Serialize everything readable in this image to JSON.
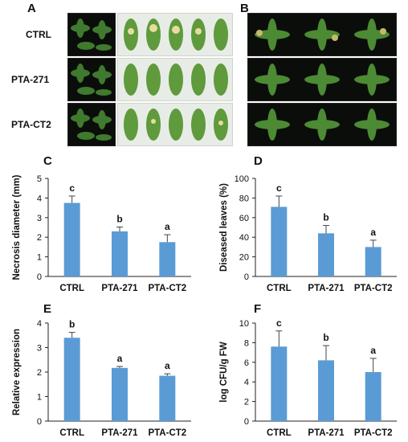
{
  "panels": {
    "A": "A",
    "B": "B",
    "C": "C",
    "D": "D",
    "E": "E",
    "F": "F"
  },
  "photo_rows": [
    "CTRL",
    "PTA-271",
    "PTA-CT2"
  ],
  "colors": {
    "bar": "#5b9bd5",
    "error": "#444444",
    "axis": "#222222"
  },
  "chart_data": [
    {
      "panel": "C",
      "type": "bar",
      "categories": [
        "CTRL",
        "PTA-271",
        "PTA-CT2"
      ],
      "values": [
        3.75,
        2.3,
        1.75
      ],
      "errors": [
        0.35,
        0.22,
        0.38
      ],
      "letters": [
        "c",
        "b",
        "a"
      ],
      "ylabel": "Necrosis diameter (mm)",
      "ylim": [
        0,
        5
      ],
      "yticks": [
        0,
        1,
        2,
        3,
        4,
        5
      ]
    },
    {
      "panel": "D",
      "type": "bar",
      "categories": [
        "CTRL",
        "PTA-271",
        "PTA-CT2"
      ],
      "values": [
        71,
        44,
        30
      ],
      "errors": [
        11,
        8,
        7
      ],
      "letters": [
        "c",
        "b",
        "a"
      ],
      "ylabel": "Diseased leaves (%)",
      "ylim": [
        0,
        100
      ],
      "yticks": [
        0,
        20,
        40,
        60,
        80,
        100
      ]
    },
    {
      "panel": "E",
      "type": "bar",
      "categories": [
        "CTRL",
        "PTA-271",
        "PTA-CT2"
      ],
      "values": [
        3.4,
        2.17,
        1.85
      ],
      "errors": [
        0.22,
        0.06,
        0.08
      ],
      "letters": [
        "b",
        "a",
        "a"
      ],
      "ylabel": "Relative expression",
      "ylim": [
        0,
        4
      ],
      "yticks": [
        0,
        1,
        2,
        3,
        4
      ]
    },
    {
      "panel": "F",
      "type": "bar",
      "categories": [
        "CTRL",
        "PTA-271",
        "PTA-CT2"
      ],
      "values": [
        7.6,
        6.2,
        5.0
      ],
      "errors": [
        1.6,
        1.5,
        1.4
      ],
      "letters": [
        "c",
        "b",
        "a"
      ],
      "ylabel": "log CFU/g FW",
      "ylim": [
        0,
        10
      ],
      "yticks": [
        0,
        2,
        4,
        6,
        8,
        10
      ]
    }
  ]
}
